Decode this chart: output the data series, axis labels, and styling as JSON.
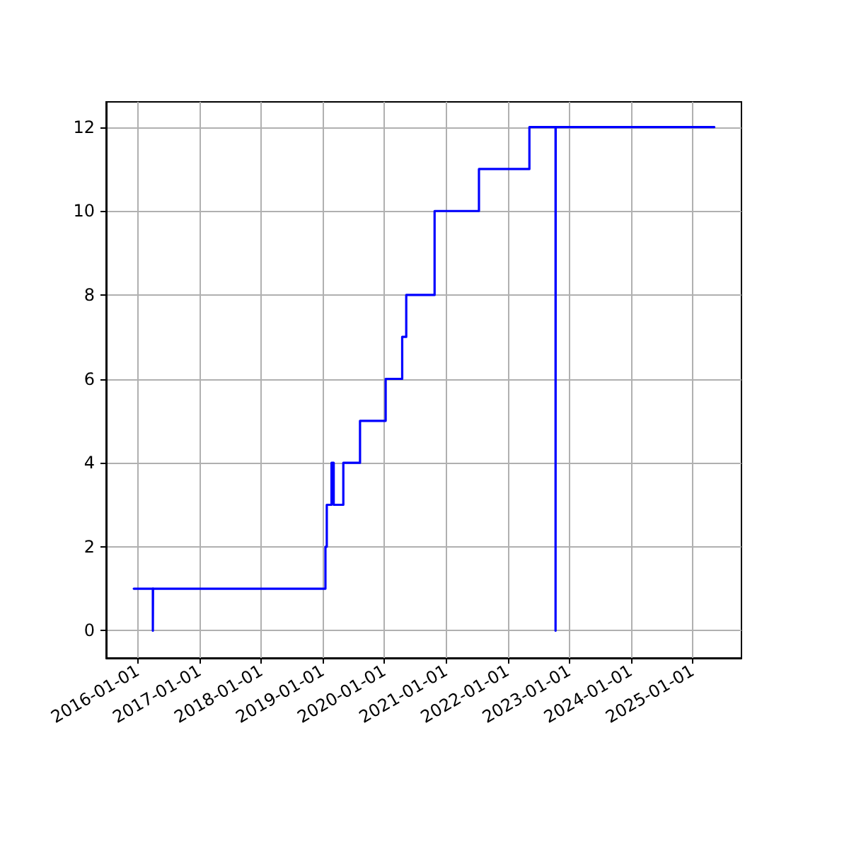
{
  "chart_data": {
    "type": "step",
    "xlim": [
      "2015-06-27",
      "2025-10-18"
    ],
    "ylim": [
      -0.65,
      12.6
    ],
    "xticks": [
      "2016-01-01",
      "2017-01-01",
      "2018-01-01",
      "2019-01-01",
      "2020-01-01",
      "2021-01-01",
      "2022-01-01",
      "2023-01-01",
      "2024-01-01",
      "2025-01-01"
    ],
    "yticks": [
      0,
      2,
      4,
      6,
      8,
      10,
      12
    ],
    "grid": true,
    "marker": "none",
    "line_style": "solid",
    "series": [
      {
        "color": "#0000ff",
        "x": [
          "2015-12-08",
          "2016-03-30",
          "2016-03-31",
          "2019-01-17",
          "2019-01-25",
          "2019-02-22",
          "2019-03-07",
          "2019-05-03",
          "2019-08-10",
          "2020-01-09",
          "2020-04-16",
          "2020-05-10",
          "2020-10-25",
          "2021-07-15",
          "2022-05-10",
          "2022-10-12",
          "2022-10-13",
          "2025-05-10"
        ],
        "values": [
          1,
          0,
          1,
          2,
          3,
          4,
          3,
          4,
          5,
          6,
          7,
          8,
          10,
          11,
          12,
          0,
          12,
          12
        ]
      }
    ]
  }
}
